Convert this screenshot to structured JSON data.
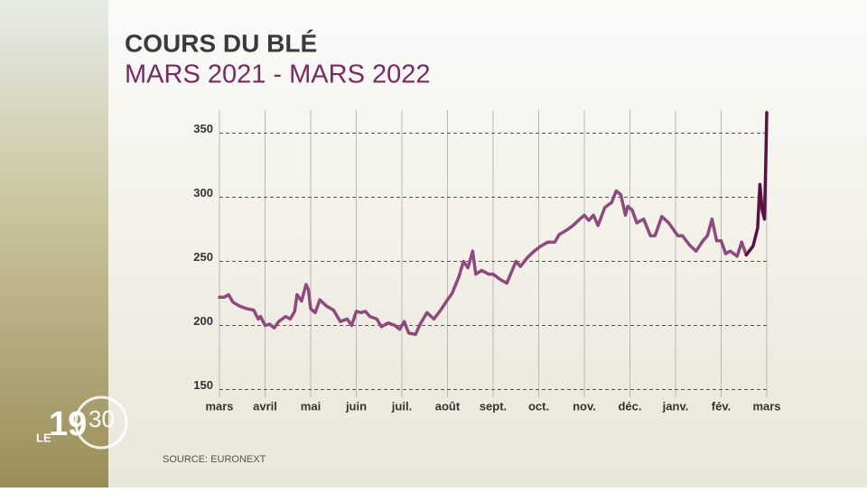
{
  "chart_data": {
    "type": "line",
    "title": "COURS DU BLÉ",
    "subtitle": "MARS 2021 - MARS 2022",
    "source": "SOURCE: EURONEXT",
    "xlim": [
      0,
      12
    ],
    "xticks": [
      {
        "value": 0,
        "label": "mars"
      },
      {
        "value": 1,
        "label": "avril"
      },
      {
        "value": 2,
        "label": "mai"
      },
      {
        "value": 3,
        "label": "juin"
      },
      {
        "value": 4,
        "label": "juil."
      },
      {
        "value": 5,
        "label": "août"
      },
      {
        "value": 6,
        "label": "sept."
      },
      {
        "value": 7,
        "label": "oct."
      },
      {
        "value": 8,
        "label": "nov."
      },
      {
        "value": 9,
        "label": "déc."
      },
      {
        "value": 10,
        "label": "janv."
      },
      {
        "value": 11,
        "label": "fév."
      },
      {
        "value": 12,
        "label": "mars"
      }
    ],
    "ylim": [
      144,
      368
    ],
    "yticks": [
      150,
      200,
      250,
      300,
      350
    ],
    "grid": true,
    "series": [
      {
        "color": "#8e4a7c",
        "x": [
          0,
          0.1,
          0.2,
          0.3,
          0.45,
          0.6,
          0.75,
          0.85,
          0.9,
          1.0,
          1.1,
          1.2,
          1.3,
          1.45,
          1.55,
          1.65,
          1.7,
          1.8,
          1.9,
          1.95,
          2.0,
          2.1,
          2.2,
          2.35,
          2.5,
          2.65,
          2.8,
          2.9,
          3.0,
          3.1,
          3.2,
          3.3,
          3.45,
          3.55,
          3.7,
          3.85,
          3.95,
          4.05,
          4.15,
          4.3,
          4.4,
          4.55,
          4.7,
          4.85,
          5.0,
          5.1,
          5.25,
          5.35,
          5.45,
          5.55,
          5.62,
          5.75,
          5.9,
          6.0,
          6.15,
          6.3,
          6.5,
          6.6,
          6.75,
          6.9,
          7.05,
          7.2,
          7.35,
          7.45,
          7.6,
          7.75,
          7.9,
          8.0,
          8.1,
          8.2,
          8.3,
          8.45,
          8.6,
          8.7,
          8.8,
          8.9,
          8.95,
          9.05,
          9.15,
          9.3,
          9.45,
          9.55,
          9.7,
          9.85,
          9.95,
          10.05,
          10.15,
          10.3,
          10.45,
          10.6,
          10.7,
          10.8,
          10.9,
          11.0,
          11.1,
          11.2,
          11.35,
          11.45,
          11.55
        ],
        "values": [
          222,
          222,
          224,
          218,
          215,
          213,
          212,
          205,
          207,
          200,
          201,
          198,
          203,
          207,
          205,
          211,
          224,
          219,
          232,
          228,
          213,
          210,
          220,
          215,
          212,
          203,
          205,
          200,
          211,
          210,
          211,
          207,
          205,
          199,
          202,
          200,
          197,
          203,
          194,
          193,
          201,
          210,
          205,
          212,
          220,
          225,
          238,
          250,
          245,
          258,
          240,
          243,
          240,
          240,
          236,
          233,
          250,
          246,
          253,
          258,
          262,
          265,
          265,
          271,
          274,
          278,
          283,
          286,
          282,
          286,
          278,
          292,
          296,
          305,
          302,
          286,
          293,
          290,
          280,
          283,
          270,
          270,
          285,
          280,
          275,
          270,
          270,
          263,
          258,
          266,
          270,
          283,
          266,
          266,
          256,
          258,
          254,
          265,
          255
        ]
      },
      {
        "color": "#5a1140",
        "x": [
          11.55,
          11.7,
          11.8,
          11.85,
          11.9,
          11.95,
          11.98,
          12.0
        ],
        "values": [
          255,
          262,
          276,
          310,
          290,
          283,
          330,
          366
        ]
      }
    ]
  },
  "logo": {
    "prefix": "LE",
    "hour": "19",
    "minute": "30"
  }
}
